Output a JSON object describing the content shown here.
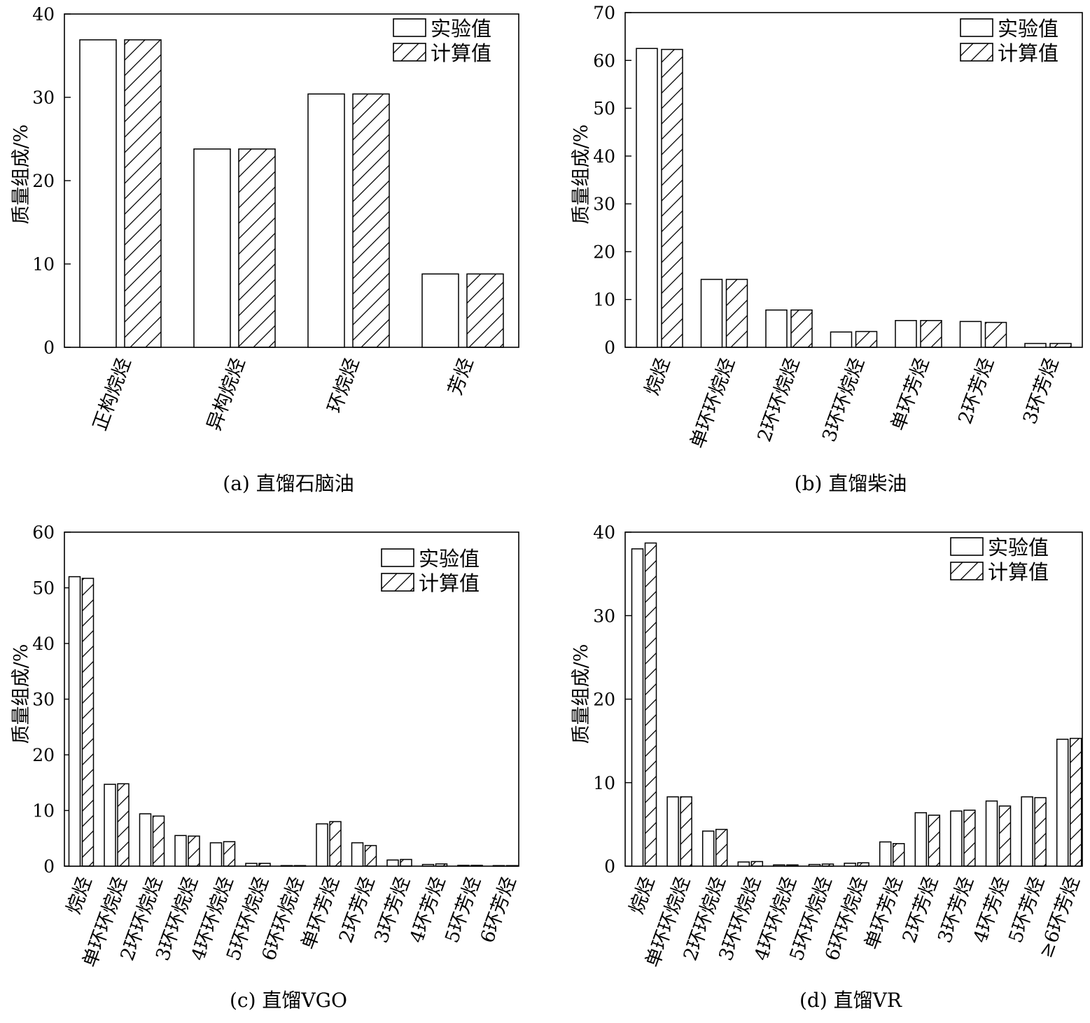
{
  "legend": {
    "experimental": "实验值",
    "calculated": "计算值"
  },
  "chart_data": [
    {
      "type": "bar",
      "caption": "(a) 直馏石脑油",
      "ylabel": "质量组成/%",
      "xlabel": "",
      "ylim": [
        0,
        40
      ],
      "yticks": [
        0,
        10,
        20,
        30,
        40
      ],
      "categories": [
        "正构烷烃",
        "异构烷烃",
        "环烷烃",
        "芳烃"
      ],
      "series": [
        {
          "name": "实验值",
          "values": [
            36.9,
            23.8,
            30.4,
            8.8
          ]
        },
        {
          "name": "计算值",
          "values": [
            36.9,
            23.8,
            30.4,
            8.8
          ]
        }
      ],
      "legend_position": "top-right"
    },
    {
      "type": "bar",
      "caption": "(b) 直馏柴油",
      "ylabel": "质量组成/%",
      "xlabel": "",
      "ylim": [
        0,
        70
      ],
      "yticks": [
        0,
        10,
        20,
        30,
        40,
        50,
        60,
        70
      ],
      "categories": [
        "烷烃",
        "单环环烷烃",
        "2环环烷烃",
        "3环环烷烃",
        "单环芳烃",
        "2环芳烃",
        "3环芳烃"
      ],
      "series": [
        {
          "name": "实验值",
          "values": [
            62.5,
            14.2,
            7.8,
            3.2,
            5.6,
            5.4,
            0.8
          ]
        },
        {
          "name": "计算值",
          "values": [
            62.3,
            14.2,
            7.8,
            3.3,
            5.6,
            5.2,
            0.8
          ]
        }
      ],
      "legend_position": "top-right"
    },
    {
      "type": "bar",
      "caption": "(c) 直馏VGO",
      "ylabel": "质量组成/%",
      "xlabel": "",
      "ylim": [
        0,
        60
      ],
      "yticks": [
        0,
        10,
        20,
        30,
        40,
        50,
        60
      ],
      "categories": [
        "烷烃",
        "单环环烷烃",
        "2环环烷烃",
        "3环环烷烃",
        "4环环烷烃",
        "5环环烷烃",
        "6环环烷烃",
        "单环芳烃",
        "2环芳烃",
        "3环芳烃",
        "4环芳烃",
        "5环芳烃",
        "6环芳烃"
      ],
      "series": [
        {
          "name": "实验值",
          "values": [
            52.0,
            14.7,
            9.4,
            5.5,
            4.2,
            0.5,
            0.1,
            7.6,
            4.2,
            1.1,
            0.3,
            0.15,
            0.1
          ]
        },
        {
          "name": "计算值",
          "values": [
            51.7,
            14.8,
            9.0,
            5.4,
            4.4,
            0.5,
            0.1,
            8.0,
            3.7,
            1.2,
            0.4,
            0.15,
            0.1
          ]
        }
      ],
      "legend_position": "top-right"
    },
    {
      "type": "bar",
      "caption": "(d) 直馏VR",
      "ylabel": "质量组成/%",
      "xlabel": "",
      "ylim": [
        0,
        40
      ],
      "yticks": [
        0,
        10,
        20,
        30,
        40
      ],
      "categories": [
        "烷烃",
        "单环环烷烃",
        "2环环烷烃",
        "3环环烷烃",
        "4环环烷烃",
        "5环环烷烃",
        "6环环烷烃",
        "单环芳烃",
        "2环芳烃",
        "3环芳烃",
        "4环芳烃",
        "5环芳烃",
        "≥6环芳烃"
      ],
      "series": [
        {
          "name": "实验值",
          "values": [
            38.0,
            8.3,
            4.2,
            0.5,
            0.15,
            0.2,
            0.35,
            2.9,
            6.4,
            6.6,
            7.8,
            8.3,
            15.2
          ]
        },
        {
          "name": "计算值",
          "values": [
            38.7,
            8.3,
            4.4,
            0.55,
            0.15,
            0.25,
            0.4,
            2.7,
            6.1,
            6.7,
            7.2,
            8.2,
            15.3
          ]
        }
      ],
      "legend_position": "top-right"
    }
  ]
}
